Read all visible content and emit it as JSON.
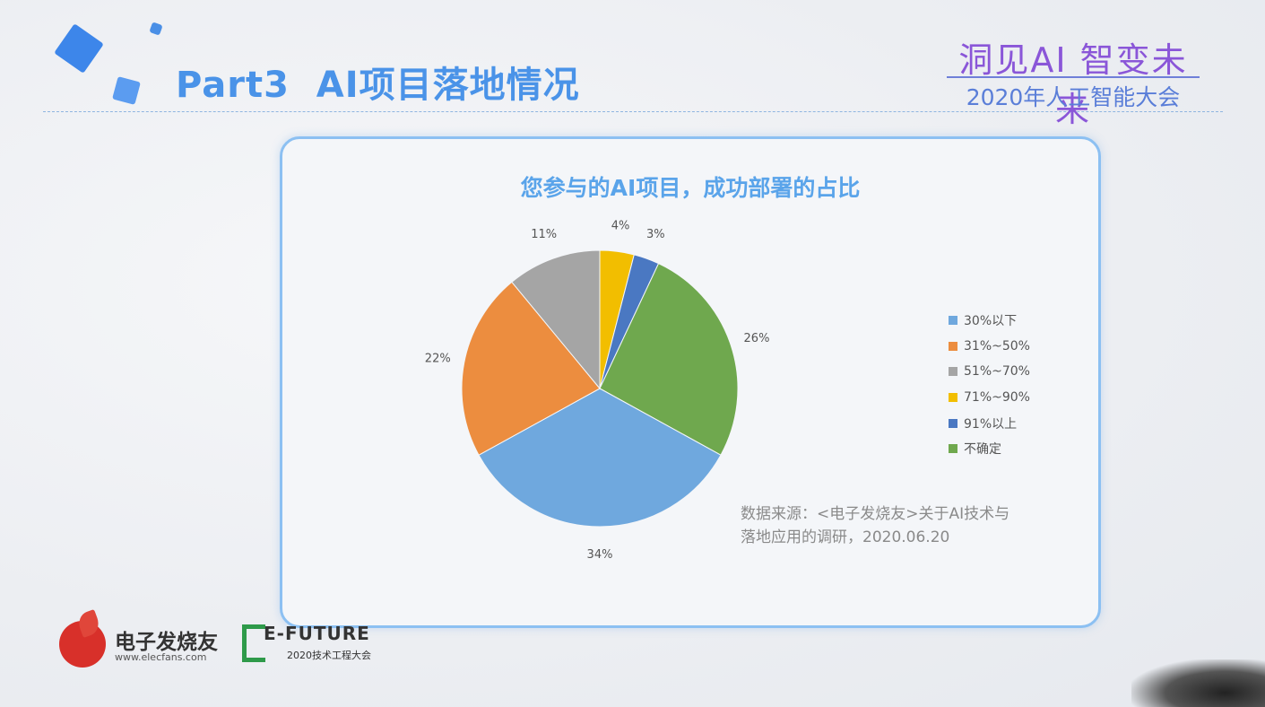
{
  "header": {
    "page_title": "Part3  AI项目落地情况",
    "conference_title": "洞见AI 智变未来",
    "conference_subtitle": "2020年人工智能大会"
  },
  "chart": {
    "source_line1": "数据来源：<电子发烧友>关于AI技术与",
    "source_line2": "落地应用的调研，2020.06.20"
  },
  "chart_data": {
    "type": "pie",
    "title": "您参与的AI项目，成功部署的占比",
    "categories": [
      "30%以下",
      "31%~50%",
      "51%~70%",
      "71%~90%",
      "91%以上",
      "不确定"
    ],
    "values": [
      34,
      22,
      11,
      4,
      3,
      26
    ],
    "data_labels": [
      "34%",
      "22%",
      "11%",
      "4%",
      "3%",
      "26%"
    ],
    "colors": [
      "#6fa8de",
      "#ec8d3f",
      "#a5a5a5",
      "#f2be00",
      "#4a78c2",
      "#6fa84e"
    ],
    "legend_position": "right"
  },
  "footer": {
    "logo1_name": "电子发烧友",
    "logo1_url": "www.elecfans.com",
    "logo2_name": "E-FUTURE",
    "logo2_sub": "2020技术工程大会"
  }
}
